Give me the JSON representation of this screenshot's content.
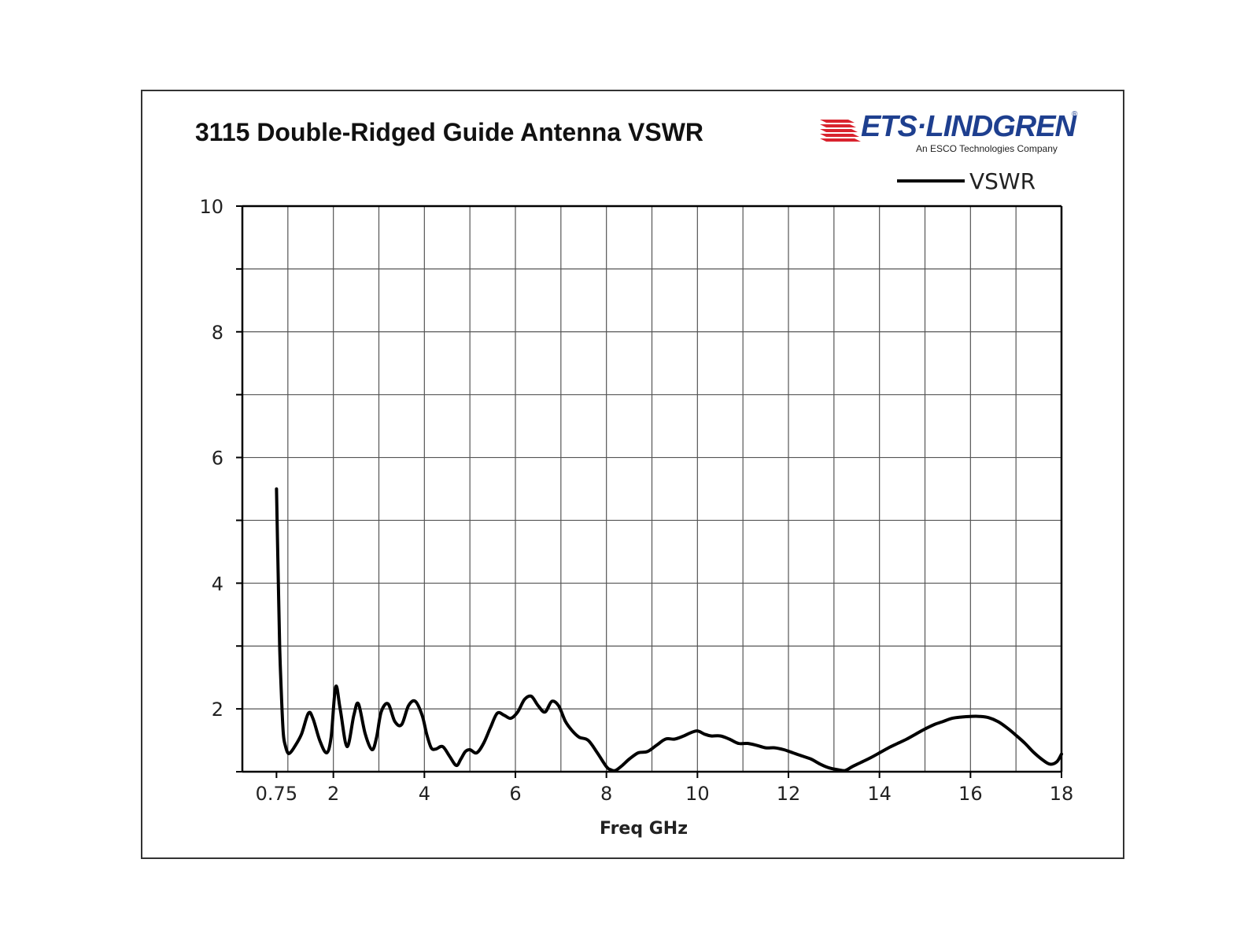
{
  "chart_data": {
    "type": "line",
    "title": "3115 Double-Ridged Guide Antenna VSWR",
    "xlabel": "Freq GHz",
    "ylabel": "",
    "xlim": [
      0.75,
      18
    ],
    "ylim": [
      1,
      10
    ],
    "x_ticks": [
      0.75,
      2,
      4,
      6,
      8,
      10,
      12,
      14,
      16,
      18
    ],
    "x_tick_labels": [
      "0.75",
      "2",
      "4",
      "6",
      "8",
      "10",
      "12",
      "14",
      "16",
      "18"
    ],
    "y_ticks": [
      2,
      4,
      6,
      8,
      10
    ],
    "y_tick_labels": [
      "2",
      "4",
      "6",
      "8",
      "10"
    ],
    "grid": true,
    "legend": "top-right",
    "series": [
      {
        "name": "VSWR",
        "color": "#000000",
        "x": [
          0.75,
          0.78,
          0.82,
          0.86,
          0.9,
          0.95,
          1.0,
          1.05,
          1.15,
          1.3,
          1.45,
          1.55,
          1.7,
          1.85,
          1.95,
          2.05,
          2.15,
          2.3,
          2.45,
          2.55,
          2.7,
          2.85,
          2.95,
          3.05,
          3.2,
          3.35,
          3.5,
          3.65,
          3.8,
          3.95,
          4.05,
          4.15,
          4.25,
          4.4,
          4.55,
          4.7,
          4.8,
          4.9,
          5.0,
          5.15,
          5.3,
          5.45,
          5.6,
          5.75,
          5.9,
          6.05,
          6.2,
          6.35,
          6.5,
          6.65,
          6.8,
          6.95,
          7.1,
          7.25,
          7.4,
          7.6,
          7.8,
          8.0,
          8.1,
          8.2,
          8.35,
          8.5,
          8.7,
          8.9,
          9.1,
          9.3,
          9.5,
          9.7,
          9.85,
          10.0,
          10.15,
          10.3,
          10.5,
          10.7,
          10.9,
          11.1,
          11.3,
          11.5,
          11.7,
          11.9,
          12.1,
          12.3,
          12.5,
          12.7,
          12.9,
          13.1,
          13.25,
          13.4,
          13.6,
          13.8,
          14.0,
          14.2,
          14.4,
          14.6,
          14.8,
          15.0,
          15.2,
          15.4,
          15.6,
          15.8,
          16.0,
          16.2,
          16.4,
          16.6,
          16.8,
          17.0,
          17.2,
          17.4,
          17.6,
          17.75,
          17.9,
          18.0
        ],
        "y": [
          5.5,
          4.4,
          3.0,
          2.2,
          1.6,
          1.4,
          1.3,
          1.3,
          1.4,
          1.6,
          1.93,
          1.85,
          1.5,
          1.3,
          1.55,
          2.35,
          2.0,
          1.4,
          1.9,
          2.08,
          1.6,
          1.35,
          1.55,
          1.95,
          2.08,
          1.8,
          1.75,
          2.05,
          2.12,
          1.9,
          1.6,
          1.38,
          1.36,
          1.4,
          1.25,
          1.1,
          1.2,
          1.32,
          1.35,
          1.3,
          1.45,
          1.7,
          1.93,
          1.9,
          1.85,
          1.95,
          2.15,
          2.2,
          2.05,
          1.95,
          2.12,
          2.05,
          1.8,
          1.65,
          1.55,
          1.5,
          1.3,
          1.08,
          1.03,
          1.02,
          1.1,
          1.2,
          1.3,
          1.32,
          1.42,
          1.52,
          1.52,
          1.57,
          1.62,
          1.65,
          1.6,
          1.57,
          1.57,
          1.52,
          1.45,
          1.45,
          1.42,
          1.38,
          1.38,
          1.35,
          1.3,
          1.25,
          1.2,
          1.12,
          1.06,
          1.03,
          1.02,
          1.08,
          1.15,
          1.22,
          1.3,
          1.38,
          1.45,
          1.52,
          1.6,
          1.68,
          1.75,
          1.8,
          1.85,
          1.87,
          1.88,
          1.88,
          1.86,
          1.8,
          1.7,
          1.58,
          1.45,
          1.3,
          1.18,
          1.12,
          1.16,
          1.28
        ]
      }
    ]
  },
  "logo": {
    "brand": "ETS·LINDGREN",
    "tagline": "An ESCO Technologies Company",
    "registered": "®",
    "primary_color": "#1e3f8f",
    "accent_color": "#d9232e"
  }
}
